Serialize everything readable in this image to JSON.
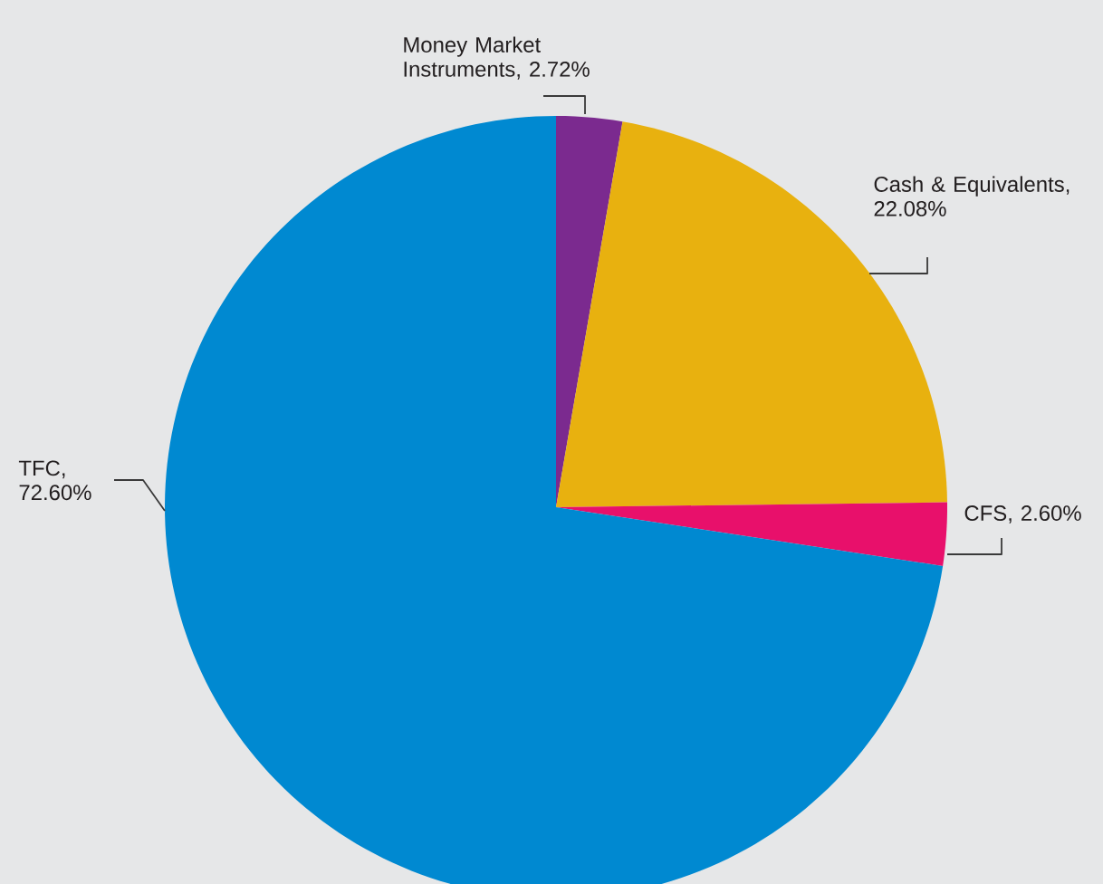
{
  "chart_data": {
    "type": "pie",
    "categories": [
      "Money Market Instruments",
      "Cash & Equivalents",
      "CFS",
      "TFC"
    ],
    "values": [
      2.72,
      22.08,
      2.6,
      72.6
    ],
    "value_labels": [
      ", 2.72%",
      ", 22.08%",
      ", 2.60%",
      ", 72.60%"
    ],
    "colors": [
      "#7b2a8f",
      "#e8b10f",
      "#e8106b",
      "#0089d1"
    ]
  }
}
